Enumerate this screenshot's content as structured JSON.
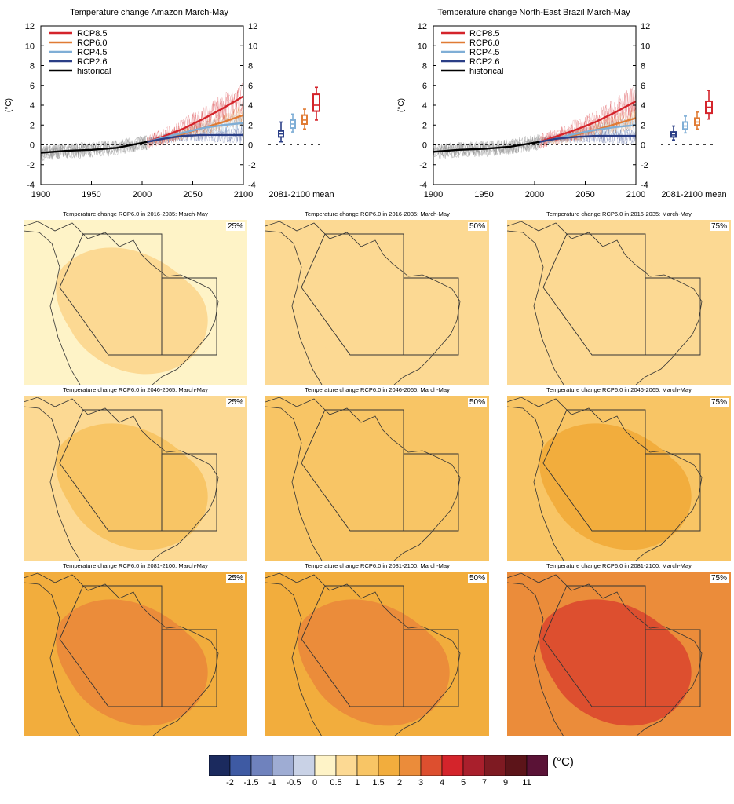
{
  "colors": {
    "rcp85": "#d4242b",
    "rcp60": "#e07b34",
    "rcp45": "#7faed6",
    "rcp26": "#2a3e86",
    "historical": "#000000",
    "historical_spread": "#8c8c8c"
  },
  "chart_data": [
    {
      "type": "line",
      "title": "Temperature change Amazon March-May",
      "ylabel": "(°C)",
      "xlim": [
        1900,
        2100
      ],
      "ylim": [
        -4,
        12
      ],
      "x_ticks": [
        1900,
        1950,
        2000,
        2050,
        2100
      ],
      "y_ticks": [
        -4,
        -2,
        0,
        2,
        4,
        6,
        8,
        10,
        12
      ],
      "x": [
        1900,
        1925,
        1950,
        1975,
        2005,
        2020,
        2040,
        2060,
        2080,
        2100
      ],
      "series": [
        {
          "name": "RCP8.5",
          "x": [
            2005,
            2020,
            2040,
            2060,
            2080,
            2100
          ],
          "values": [
            0.3,
            0.8,
            1.6,
            2.6,
            3.7,
            4.9
          ]
        },
        {
          "name": "RCP6.0",
          "x": [
            2005,
            2020,
            2040,
            2060,
            2080,
            2100
          ],
          "values": [
            0.3,
            0.6,
            1.1,
            1.7,
            2.3,
            3.0
          ]
        },
        {
          "name": "RCP4.5",
          "x": [
            2005,
            2020,
            2040,
            2060,
            2080,
            2100
          ],
          "values": [
            0.3,
            0.7,
            1.2,
            1.7,
            2.0,
            2.2
          ]
        },
        {
          "name": "RCP2.6",
          "x": [
            2005,
            2020,
            2040,
            2060,
            2080,
            2100
          ],
          "values": [
            0.3,
            0.6,
            0.9,
            1.0,
            1.0,
            1.0
          ]
        },
        {
          "name": "historical",
          "x": [
            1900,
            1925,
            1950,
            1975,
            2005
          ],
          "values": [
            -0.8,
            -0.6,
            -0.5,
            -0.3,
            0.3
          ]
        }
      ],
      "boxplots": {
        "label": "2081-2100 mean",
        "items": [
          {
            "series": "RCP2.6",
            "min": 0.3,
            "q1": 0.8,
            "median": 1.1,
            "q3": 1.4,
            "max": 2.3
          },
          {
            "series": "RCP4.5",
            "min": 1.3,
            "q1": 1.7,
            "median": 2.1,
            "q3": 2.5,
            "max": 3.1
          },
          {
            "series": "RCP6.0",
            "min": 1.6,
            "q1": 2.1,
            "median": 2.5,
            "q3": 3.0,
            "max": 3.6
          },
          {
            "series": "RCP8.5",
            "min": 2.5,
            "q1": 3.4,
            "median": 4.0,
            "q3": 5.1,
            "max": 5.8
          }
        ]
      },
      "legend": "top-left",
      "right_axis_duplicates_left": true
    },
    {
      "type": "line",
      "title": "Temperature change North-East Brazil March-May",
      "ylabel": "(°C)",
      "xlim": [
        1900,
        2100
      ],
      "ylim": [
        -4,
        12
      ],
      "x_ticks": [
        1900,
        1950,
        2000,
        2050,
        2100
      ],
      "y_ticks": [
        -4,
        -2,
        0,
        2,
        4,
        6,
        8,
        10,
        12
      ],
      "series": [
        {
          "name": "RCP8.5",
          "x": [
            2005,
            2020,
            2040,
            2060,
            2080,
            2100
          ],
          "values": [
            0.3,
            0.8,
            1.5,
            2.3,
            3.3,
            4.4
          ]
        },
        {
          "name": "RCP6.0",
          "x": [
            2005,
            2020,
            2040,
            2060,
            2080,
            2100
          ],
          "values": [
            0.3,
            0.6,
            1.0,
            1.5,
            2.1,
            2.7
          ]
        },
        {
          "name": "RCP4.5",
          "x": [
            2005,
            2020,
            2040,
            2060,
            2080,
            2100
          ],
          "values": [
            0.3,
            0.6,
            1.1,
            1.5,
            1.8,
            2.0
          ]
        },
        {
          "name": "RCP2.6",
          "x": [
            2005,
            2020,
            2040,
            2060,
            2080,
            2100
          ],
          "values": [
            0.3,
            0.6,
            0.8,
            0.9,
            0.9,
            0.9
          ]
        },
        {
          "name": "historical",
          "x": [
            1900,
            1925,
            1950,
            1975,
            2005
          ],
          "values": [
            -0.7,
            -0.5,
            -0.4,
            -0.2,
            0.3
          ]
        }
      ],
      "boxplots": {
        "label": "2081-2100 mean",
        "items": [
          {
            "series": "RCP2.6",
            "min": 0.5,
            "q1": 0.8,
            "median": 1.0,
            "q3": 1.3,
            "max": 1.9
          },
          {
            "series": "RCP4.5",
            "min": 1.2,
            "q1": 1.6,
            "median": 1.9,
            "q3": 2.3,
            "max": 2.9
          },
          {
            "series": "RCP6.0",
            "min": 1.6,
            "q1": 2.0,
            "median": 2.3,
            "q3": 2.7,
            "max": 3.3
          },
          {
            "series": "RCP8.5",
            "min": 2.6,
            "q1": 3.2,
            "median": 3.8,
            "q3": 4.4,
            "max": 5.5
          }
        ]
      },
      "legend": "top-left",
      "right_axis_duplicates_left": true
    },
    {
      "type": "heatmap",
      "panels": [
        {
          "title": "Temperature change RCP6.0 in 2016-2035: March-May",
          "percentile": "25%",
          "base_color": "#fef3c7",
          "main_color": "#fcd993"
        },
        {
          "title": "Temperature change RCP6.0 in 2016-2035: March-May",
          "percentile": "50%",
          "base_color": "#fcd993",
          "main_color": "#fcd993"
        },
        {
          "title": "Temperature change RCP6.0 in 2016-2035: March-May",
          "percentile": "75%",
          "base_color": "#fcd993",
          "main_color": "#fcd993"
        },
        {
          "title": "Temperature change RCP6.0 in 2046-2065: March-May",
          "percentile": "25%",
          "base_color": "#fcd993",
          "main_color": "#f8c565"
        },
        {
          "title": "Temperature change RCP6.0 in 2046-2065: March-May",
          "percentile": "50%",
          "base_color": "#f8c565",
          "main_color": "#f8c565"
        },
        {
          "title": "Temperature change RCP6.0 in 2046-2065: March-May",
          "percentile": "75%",
          "base_color": "#f8c565",
          "main_color": "#f2ad3d"
        },
        {
          "title": "Temperature change RCP6.0 in 2081-2100: March-May",
          "percentile": "25%",
          "base_color": "#f2ad3d",
          "main_color": "#eb8c3a"
        },
        {
          "title": "Temperature change RCP6.0 in 2081-2100: March-May",
          "percentile": "50%",
          "base_color": "#f2ad3d",
          "main_color": "#eb8c3a"
        },
        {
          "title": "Temperature change RCP6.0 in 2081-2100: March-May",
          "percentile": "75%",
          "base_color": "#eb8c3a",
          "main_color": "#dd4f2f"
        }
      ]
    }
  ],
  "colorbar": {
    "unit": "(°C)",
    "labels": [
      "-2",
      "-1.5",
      "-1",
      "-0.5",
      "0",
      "0.5",
      "1",
      "1.5",
      "2",
      "3",
      "4",
      "5",
      "7",
      "9",
      "11"
    ],
    "colors": [
      "#1b2a5e",
      "#3e5aa3",
      "#6f82bd",
      "#9eacd3",
      "#c9d2e6",
      "#fef3c7",
      "#fcd993",
      "#f8c565",
      "#f2ad3d",
      "#eb8c3a",
      "#dd4f2f",
      "#d4242b",
      "#a91f2c",
      "#7e1a22",
      "#5c1419",
      "#5a1236"
    ]
  }
}
